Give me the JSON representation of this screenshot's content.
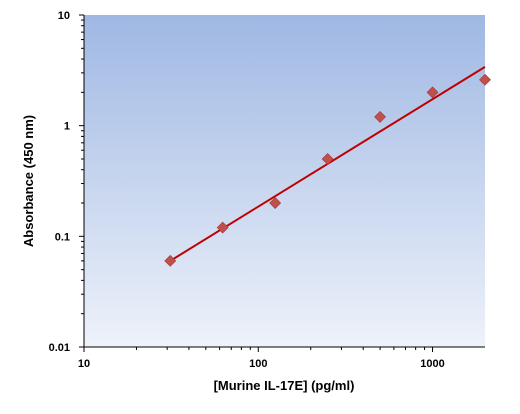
{
  "chart_data": {
    "type": "scatter",
    "xlabel": "[Murine IL-17E] (pg/ml)",
    "ylabel": "Absorbance (450 nm)",
    "x_scale": "log",
    "y_scale": "log",
    "xlim": [
      10,
      2000
    ],
    "ylim": [
      0.01,
      10
    ],
    "x_ticks": [
      10,
      100,
      1000
    ],
    "x_tick_labels": [
      "10",
      "100",
      "1000"
    ],
    "y_ticks": [
      0.01,
      0.1,
      1,
      10
    ],
    "y_tick_labels": [
      "0.01",
      "0.1",
      "1",
      "10"
    ],
    "grid": false,
    "series": [
      {
        "marker": "diamond",
        "color": "#c0504d",
        "points": [
          {
            "x": 31.25,
            "y": 0.06
          },
          {
            "x": 62.5,
            "y": 0.12
          },
          {
            "x": 125,
            "y": 0.2
          },
          {
            "x": 250,
            "y": 0.5
          },
          {
            "x": 500,
            "y": 1.2
          },
          {
            "x": 1000,
            "y": 2.0
          },
          {
            "x": 2000,
            "y": 2.6
          }
        ]
      }
    ],
    "trendline": {
      "type": "power",
      "color": "#c00000",
      "from": {
        "x": 31.25,
        "y": 0.06
      },
      "to": {
        "x": 2000,
        "y": 3.4
      }
    },
    "plot_background": {
      "top": "#9fb8e3",
      "bottom": "#eef2fa"
    }
  }
}
